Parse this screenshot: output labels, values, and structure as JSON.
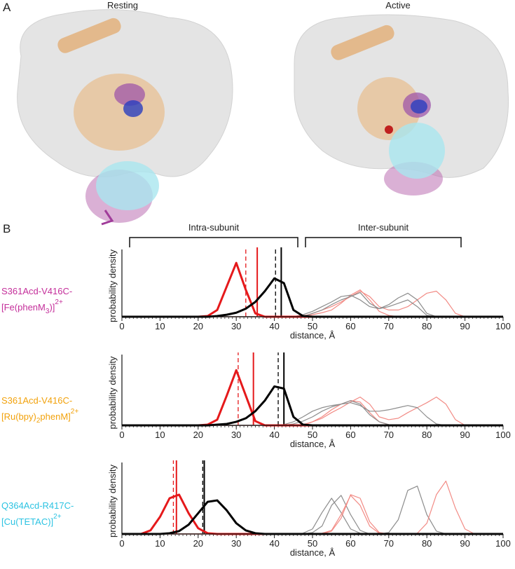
{
  "panel_a": {
    "label": "A",
    "titles": [
      "Resting",
      "Active"
    ]
  },
  "panel_b": {
    "label": "B",
    "brackets": [
      "Intra-subunit",
      "Inter-subunit"
    ]
  },
  "chart_data": [
    {
      "type": "line",
      "label_line1": "S361Acd-V416C-",
      "label_line2": "[Fe(phenM",
      "label_sub": "3",
      "label_after": ")]",
      "label_sup": "2+",
      "label_color": "#c42e9a",
      "ylabel": "probability density",
      "xlabel": "distance,  Å",
      "xlim": [
        0,
        100
      ],
      "ylim": [
        0,
        1
      ],
      "xticks": [
        0,
        10,
        20,
        30,
        40,
        50,
        60,
        70,
        80,
        90,
        100
      ],
      "minor_tick_step": 1,
      "x": [
        0,
        2.5,
        5,
        7.5,
        10,
        12.5,
        15,
        17.5,
        20,
        22.5,
        25,
        27.5,
        30,
        32.5,
        35,
        37.5,
        40,
        42.5,
        45,
        47.5,
        50,
        52.5,
        55,
        57.5,
        60,
        62.5,
        65,
        67.5,
        70,
        72.5,
        75,
        77.5,
        80,
        82.5,
        85,
        87.5,
        90,
        92.5,
        95,
        97.5,
        100
      ],
      "series": [
        {
          "color": "#f28b85",
          "line_width": 1.2,
          "values": [
            0,
            0,
            0,
            0,
            0,
            0,
            0,
            0,
            0,
            0,
            0,
            0,
            0,
            0,
            0,
            0,
            0,
            0,
            0,
            0.01,
            0.05,
            0.1,
            0.15,
            0.22,
            0.3,
            0.38,
            0.3,
            0.15,
            0.1,
            0.1,
            0.15,
            0.25,
            0.35,
            0.38,
            0.25,
            0.05,
            0,
            0,
            0,
            0,
            0
          ]
        },
        {
          "color": "#f28b85",
          "line_width": 1.2,
          "values": [
            0,
            0,
            0,
            0,
            0,
            0,
            0,
            0,
            0,
            0,
            0,
            0,
            0,
            0,
            0,
            0,
            0,
            0,
            0,
            0,
            0.03,
            0.06,
            0.1,
            0.2,
            0.32,
            0.4,
            0.25,
            0.08,
            0.02,
            0,
            0,
            0,
            0,
            0,
            0,
            0,
            0,
            0,
            0,
            0,
            0
          ]
        },
        {
          "color": "#8c8c8c",
          "line_width": 1.2,
          "values": [
            0,
            0,
            0,
            0,
            0,
            0,
            0,
            0,
            0,
            0,
            0,
            0,
            0,
            0,
            0,
            0,
            0,
            0,
            0,
            0.03,
            0.08,
            0.15,
            0.22,
            0.3,
            0.32,
            0.25,
            0.15,
            0.12,
            0.18,
            0.28,
            0.35,
            0.25,
            0.05,
            0,
            0,
            0,
            0,
            0,
            0,
            0,
            0
          ]
        },
        {
          "color": "#8c8c8c",
          "line_width": 1.2,
          "values": [
            0,
            0,
            0,
            0,
            0,
            0,
            0,
            0,
            0,
            0,
            0,
            0,
            0,
            0,
            0,
            0,
            0,
            0,
            0,
            0,
            0.05,
            0.1,
            0.18,
            0.25,
            0.3,
            0.36,
            0.2,
            0.12,
            0.15,
            0.2,
            0.25,
            0.15,
            0.02,
            0,
            0,
            0,
            0,
            0,
            0,
            0,
            0
          ]
        },
        {
          "color": "#e5191b",
          "line_width": 3,
          "values": [
            0,
            0,
            0,
            0,
            0,
            0,
            0,
            0,
            0,
            0.01,
            0.1,
            0.45,
            0.8,
            0.4,
            0.05,
            0,
            0,
            0,
            0,
            0,
            0,
            0,
            0,
            0,
            0,
            0,
            0,
            0,
            0,
            0,
            0,
            0,
            0,
            0,
            0,
            0,
            0,
            0,
            0,
            0,
            0
          ]
        },
        {
          "color": "#000000",
          "line_width": 3,
          "values": [
            0,
            0,
            0,
            0,
            0,
            0,
            0,
            0,
            0,
            0,
            0.01,
            0.03,
            0.06,
            0.12,
            0.22,
            0.38,
            0.57,
            0.5,
            0.1,
            0.01,
            0,
            0,
            0,
            0,
            0,
            0,
            0,
            0,
            0,
            0,
            0,
            0,
            0,
            0,
            0,
            0,
            0,
            0,
            0,
            0,
            0
          ]
        }
      ],
      "vlines": [
        {
          "x": 32.5,
          "color": "#e5191b",
          "dashed": true
        },
        {
          "x": 35.5,
          "color": "#e5191b",
          "dashed": false
        },
        {
          "x": 40.3,
          "color": "#000000",
          "dashed": true
        },
        {
          "x": 41.8,
          "color": "#000000",
          "dashed": false
        }
      ]
    },
    {
      "type": "line",
      "label_line1": "S361Acd-V416C-",
      "label_line2": "[Ru(bpy)",
      "label_sub": "2",
      "label_after": "phenM]",
      "label_sup": "2+",
      "label_color": "#f2a20c",
      "ylabel": "probability density",
      "xlabel": "distance,  Å",
      "xlim": [
        0,
        100
      ],
      "ylim": [
        0,
        1
      ],
      "xticks": [
        0,
        10,
        20,
        30,
        40,
        50,
        60,
        70,
        80,
        90,
        100
      ],
      "minor_tick_step": 1,
      "x": [
        0,
        2.5,
        5,
        7.5,
        10,
        12.5,
        15,
        17.5,
        20,
        22.5,
        25,
        27.5,
        30,
        32.5,
        35,
        37.5,
        40,
        42.5,
        45,
        47.5,
        50,
        52.5,
        55,
        57.5,
        60,
        62.5,
        65,
        67.5,
        70,
        72.5,
        75,
        77.5,
        80,
        82.5,
        85,
        87.5,
        90,
        92.5,
        95,
        97.5,
        100
      ],
      "series": [
        {
          "color": "#f28b85",
          "line_width": 1.2,
          "values": [
            0,
            0,
            0,
            0,
            0,
            0,
            0,
            0,
            0,
            0,
            0,
            0,
            0,
            0,
            0,
            0,
            0,
            0,
            0,
            0.01,
            0.05,
            0.1,
            0.18,
            0.25,
            0.33,
            0.4,
            0.3,
            0.12,
            0.08,
            0.1,
            0.18,
            0.25,
            0.32,
            0.4,
            0.3,
            0.08,
            0,
            0,
            0,
            0,
            0
          ]
        },
        {
          "color": "#f28b85",
          "line_width": 1.2,
          "values": [
            0,
            0,
            0,
            0,
            0,
            0,
            0,
            0,
            0,
            0,
            0,
            0,
            0,
            0,
            0,
            0,
            0,
            0,
            0,
            0,
            0.05,
            0.12,
            0.22,
            0.3,
            0.35,
            0.33,
            0.18,
            0.05,
            0.01,
            0,
            0,
            0,
            0,
            0,
            0,
            0,
            0,
            0,
            0,
            0,
            0
          ]
        },
        {
          "color": "#8c8c8c",
          "line_width": 1.2,
          "values": [
            0,
            0,
            0,
            0,
            0,
            0,
            0,
            0,
            0,
            0,
            0,
            0,
            0,
            0,
            0,
            0,
            0,
            0.01,
            0.05,
            0.12,
            0.2,
            0.25,
            0.28,
            0.3,
            0.32,
            0.28,
            0.2,
            0.2,
            0.22,
            0.25,
            0.28,
            0.25,
            0.12,
            0.02,
            0,
            0,
            0,
            0,
            0,
            0,
            0
          ]
        },
        {
          "color": "#8c8c8c",
          "line_width": 1.2,
          "values": [
            0,
            0,
            0,
            0,
            0,
            0,
            0,
            0,
            0,
            0,
            0,
            0,
            0,
            0,
            0,
            0,
            0,
            0,
            0.02,
            0.06,
            0.12,
            0.2,
            0.26,
            0.3,
            0.35,
            0.3,
            0.15,
            0.05,
            0.01,
            0,
            0,
            0,
            0,
            0,
            0,
            0,
            0,
            0,
            0,
            0,
            0
          ]
        },
        {
          "color": "#e5191b",
          "line_width": 3,
          "values": [
            0,
            0,
            0,
            0,
            0,
            0,
            0,
            0,
            0,
            0.01,
            0.08,
            0.42,
            0.78,
            0.42,
            0.06,
            0,
            0,
            0,
            0,
            0,
            0,
            0,
            0,
            0,
            0,
            0,
            0,
            0,
            0,
            0,
            0,
            0,
            0,
            0,
            0,
            0,
            0,
            0,
            0,
            0,
            0
          ]
        },
        {
          "color": "#000000",
          "line_width": 3,
          "values": [
            0,
            0,
            0,
            0,
            0,
            0,
            0,
            0,
            0,
            0,
            0.01,
            0.02,
            0.05,
            0.1,
            0.2,
            0.35,
            0.55,
            0.52,
            0.12,
            0.01,
            0,
            0,
            0,
            0,
            0,
            0,
            0,
            0,
            0,
            0,
            0,
            0,
            0,
            0,
            0,
            0,
            0,
            0,
            0,
            0,
            0
          ]
        }
      ],
      "vlines": [
        {
          "x": 30.5,
          "color": "#e5191b",
          "dashed": true
        },
        {
          "x": 34.5,
          "color": "#e5191b",
          "dashed": false
        },
        {
          "x": 41,
          "color": "#000000",
          "dashed": true
        },
        {
          "x": 42.5,
          "color": "#000000",
          "dashed": false
        }
      ]
    },
    {
      "type": "line",
      "label_line1": "Q364Acd-R417C-",
      "label_line2": "[Cu(TETAC)]",
      "label_sup": "2+",
      "label_color": "#2cc3e2",
      "ylabel": "probability density",
      "xlabel": "distance,  Å",
      "xlim": [
        0,
        100
      ],
      "ylim": [
        0,
        1
      ],
      "xticks": [
        0,
        10,
        20,
        30,
        40,
        50,
        60,
        70,
        80,
        90,
        100
      ],
      "minor_tick_step": 1,
      "x": [
        0,
        2.5,
        5,
        7.5,
        10,
        12.5,
        15,
        17.5,
        20,
        22.5,
        25,
        27.5,
        30,
        32.5,
        35,
        37.5,
        40,
        42.5,
        45,
        47.5,
        50,
        52.5,
        55,
        57.5,
        60,
        62.5,
        65,
        67.5,
        70,
        72.5,
        75,
        77.5,
        80,
        82.5,
        85,
        87.5,
        90,
        92.5,
        95,
        97.5,
        100
      ],
      "series": [
        {
          "color": "#8c8c8c",
          "line_width": 1.2,
          "values": [
            0,
            0,
            0,
            0,
            0,
            0,
            0,
            0,
            0,
            0,
            0,
            0,
            0,
            0,
            0,
            0,
            0,
            0,
            0,
            0.01,
            0.07,
            0.3,
            0.5,
            0.3,
            0.07,
            0.01,
            0,
            0,
            0,
            0,
            0,
            0,
            0,
            0,
            0,
            0,
            0,
            0,
            0,
            0,
            0
          ]
        },
        {
          "color": "#8c8c8c",
          "line_width": 1.2,
          "values": [
            0,
            0,
            0,
            0,
            0,
            0,
            0,
            0,
            0,
            0,
            0,
            0,
            0,
            0,
            0,
            0,
            0,
            0,
            0,
            0,
            0.02,
            0.11,
            0.4,
            0.54,
            0.27,
            0.05,
            0,
            0,
            0,
            0,
            0,
            0,
            0,
            0,
            0,
            0,
            0,
            0,
            0,
            0,
            0
          ]
        },
        {
          "color": "#8c8c8c",
          "line_width": 1.2,
          "values": [
            0,
            0,
            0,
            0,
            0,
            0,
            0,
            0,
            0,
            0,
            0,
            0,
            0,
            0,
            0,
            0,
            0,
            0,
            0,
            0,
            0,
            0,
            0,
            0,
            0,
            0,
            0,
            0,
            0.02,
            0.2,
            0.61,
            0.67,
            0.27,
            0.04,
            0,
            0,
            0,
            0,
            0,
            0,
            0
          ]
        },
        {
          "color": "#f28b85",
          "line_width": 1.2,
          "values": [
            0,
            0,
            0,
            0,
            0,
            0,
            0,
            0,
            0,
            0,
            0,
            0,
            0,
            0,
            0,
            0,
            0,
            0,
            0,
            0,
            0,
            0.01,
            0.05,
            0.27,
            0.54,
            0.4,
            0.11,
            0.01,
            0,
            0,
            0,
            0,
            0,
            0,
            0,
            0,
            0,
            0,
            0,
            0,
            0
          ]
        },
        {
          "color": "#f28b85",
          "line_width": 1.2,
          "values": [
            0,
            0,
            0,
            0,
            0,
            0,
            0,
            0,
            0,
            0,
            0,
            0,
            0,
            0,
            0,
            0,
            0,
            0,
            0,
            0,
            0,
            0,
            0.04,
            0.22,
            0.55,
            0.5,
            0.17,
            0.02,
            0,
            0,
            0,
            0,
            0,
            0,
            0,
            0,
            0,
            0,
            0,
            0,
            0
          ]
        },
        {
          "color": "#f28b85",
          "line_width": 1.2,
          "values": [
            0,
            0,
            0,
            0,
            0,
            0,
            0,
            0,
            0,
            0,
            0,
            0,
            0,
            0,
            0,
            0,
            0,
            0,
            0,
            0,
            0,
            0,
            0,
            0,
            0,
            0,
            0,
            0,
            0,
            0,
            0,
            0.01,
            0.15,
            0.55,
            0.74,
            0.36,
            0.07,
            0,
            0,
            0,
            0
          ]
        },
        {
          "color": "#e5191b",
          "line_width": 3,
          "values": [
            0,
            0,
            0,
            0.05,
            0.24,
            0.5,
            0.55,
            0.29,
            0.08,
            0.01,
            0,
            0,
            0,
            0,
            0,
            0,
            0,
            0,
            0,
            0,
            0,
            0,
            0,
            0,
            0,
            0,
            0,
            0,
            0,
            0,
            0,
            0,
            0,
            0,
            0,
            0,
            0,
            0,
            0,
            0,
            0
          ]
        },
        {
          "color": "#000000",
          "line_width": 3,
          "values": [
            0,
            0,
            0,
            0,
            0,
            0.01,
            0.04,
            0.13,
            0.29,
            0.45,
            0.47,
            0.33,
            0.15,
            0.05,
            0.01,
            0,
            0,
            0,
            0,
            0,
            0,
            0,
            0,
            0,
            0,
            0,
            0,
            0,
            0,
            0,
            0,
            0,
            0,
            0,
            0,
            0,
            0,
            0,
            0,
            0,
            0
          ]
        }
      ],
      "vlines": [
        {
          "x": 13.5,
          "color": "#e5191b",
          "dashed": true
        },
        {
          "x": 14.3,
          "color": "#e5191b",
          "dashed": false
        },
        {
          "x": 21.2,
          "color": "#000000",
          "dashed": true
        },
        {
          "x": 21.6,
          "color": "#000000",
          "dashed": false
        }
      ]
    }
  ]
}
